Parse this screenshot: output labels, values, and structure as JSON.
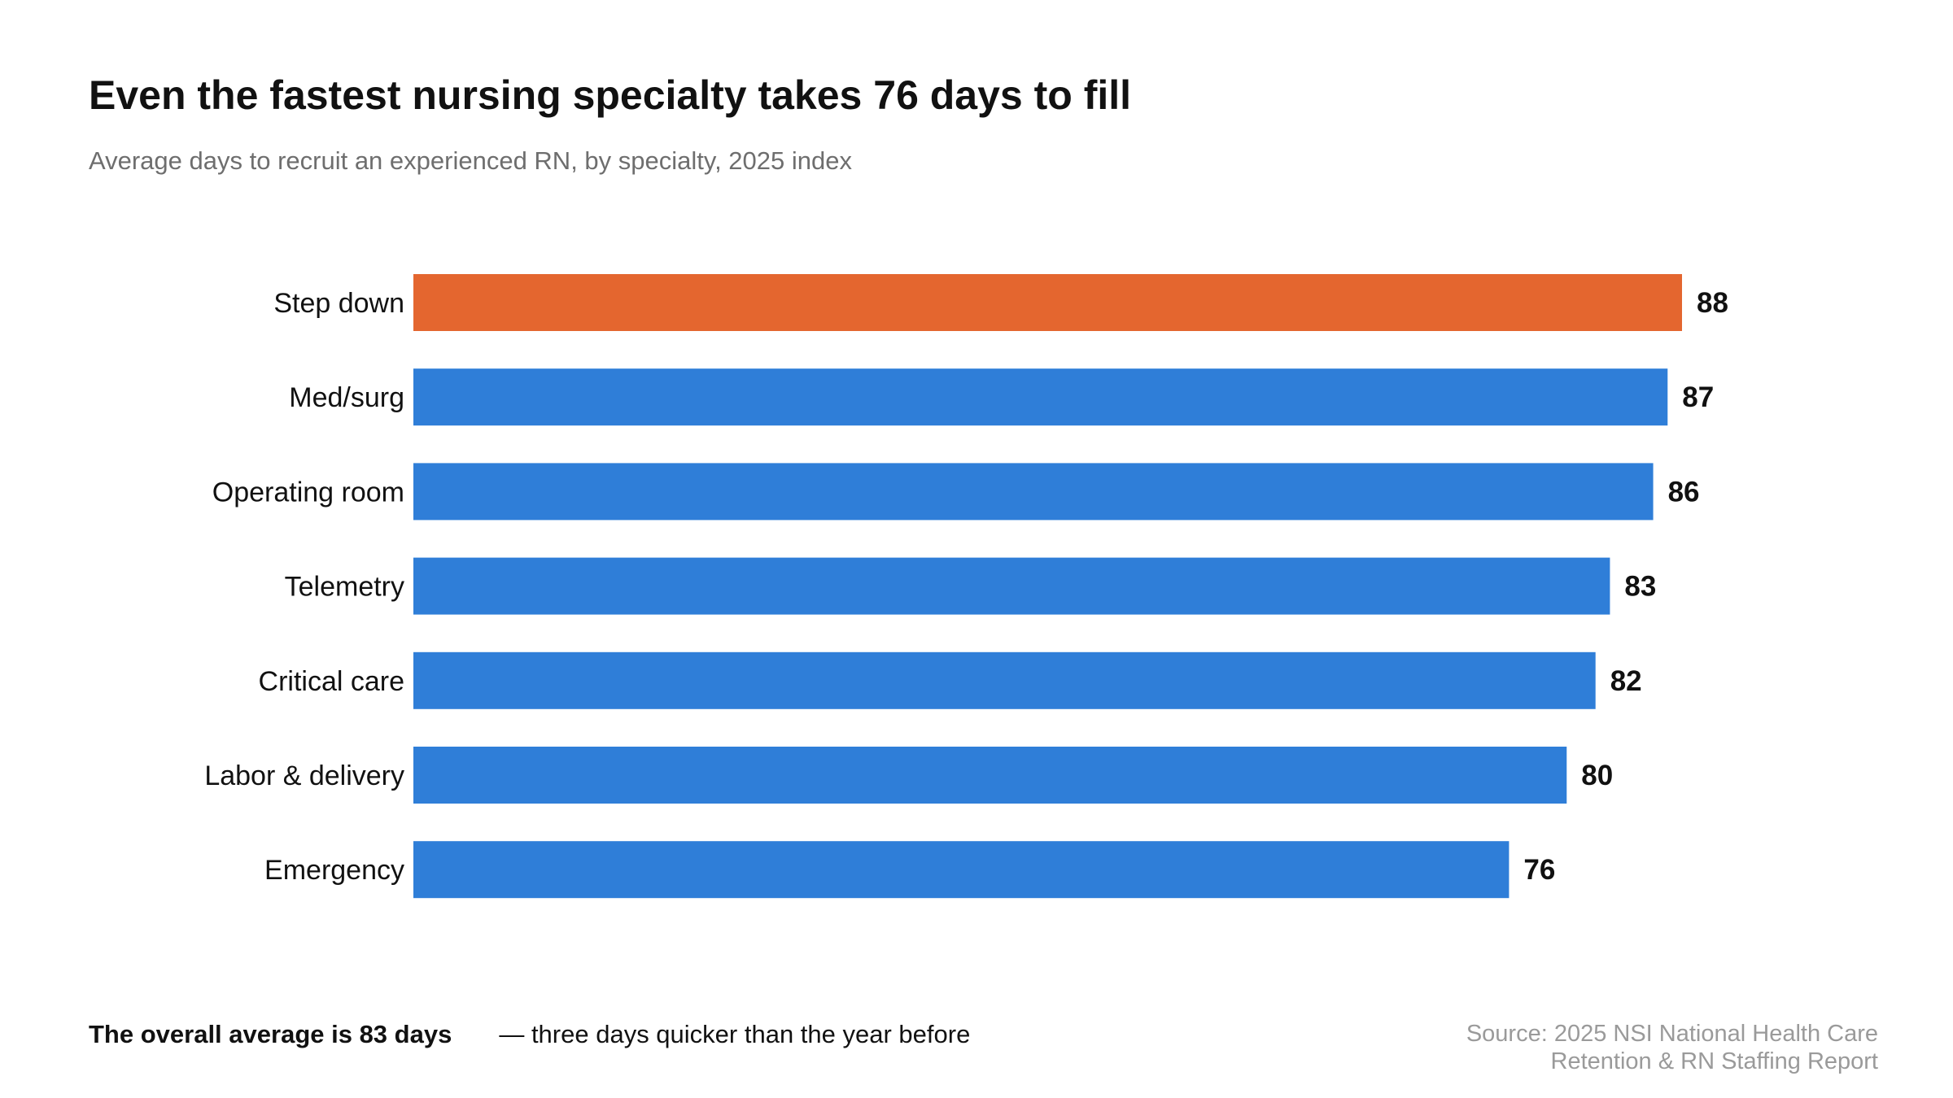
{
  "title": "Even the fastest nursing specialty takes 76 days to fill",
  "subtitle": "Average days to recruit an experienced RN, by specialty, 2025 index",
  "footer": {
    "callout_bold": "The overall average is 83 days",
    "callout_rest": "— three days quicker than the year before",
    "source_line1": "Source: 2025 NSI National Health Care",
    "source_line2": "Retention & RN Staffing Report"
  },
  "colors": {
    "highlight": "#e4662f",
    "bar": "#2f7ed8"
  },
  "chart_data": {
    "type": "bar",
    "orientation": "horizontal",
    "title": "Even the fastest nursing specialty takes 76 days to fill",
    "subtitle": "Average days to recruit an experienced RN, by specialty, 2025 index",
    "xlabel": "",
    "ylabel": "",
    "categories": [
      "Step down",
      "Med/surg",
      "Operating room",
      "Telemetry",
      "Critical care",
      "Labor & delivery",
      "Emergency"
    ],
    "values": [
      88,
      87,
      86,
      83,
      82,
      80,
      76
    ],
    "highlighted": [
      "Step down"
    ],
    "xlim": [
      0,
      88
    ],
    "grid": false,
    "legend": "none",
    "data_labels": true
  }
}
